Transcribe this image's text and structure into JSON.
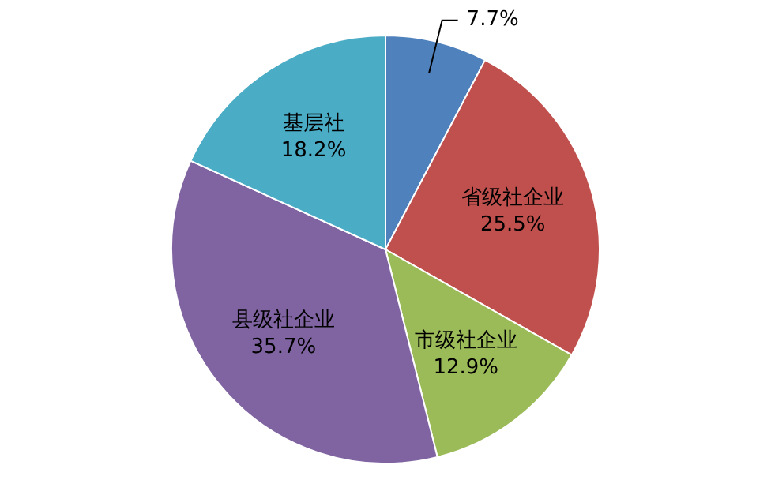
{
  "chart_data": {
    "type": "pie",
    "categories": [
      null,
      "省级社企业",
      "市级社企业",
      "县级社企业",
      "基层社"
    ],
    "values": [
      7.7,
      25.5,
      12.9,
      35.7,
      18.2
    ],
    "value_labels": [
      "7.7%",
      "25.5%",
      "12.9%",
      "35.7%",
      "18.2%"
    ],
    "colors": [
      "#4f81bd",
      "#c0504d",
      "#9bbb59",
      "#8064a2",
      "#4bacc6"
    ],
    "legend": false
  }
}
